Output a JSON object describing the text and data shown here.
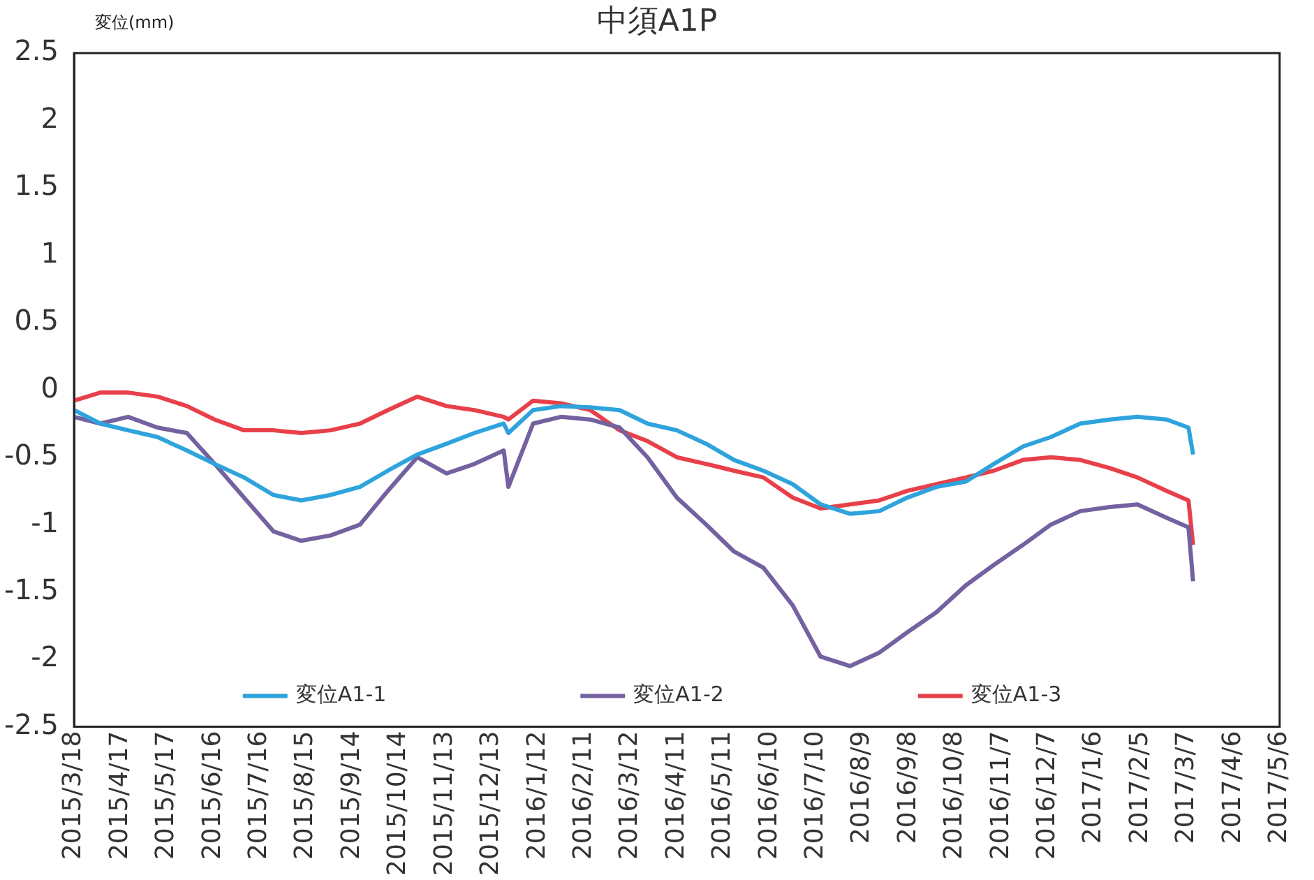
{
  "chart_data": {
    "type": "line",
    "title": "中須A1P",
    "ylabel": "変位(mm)",
    "x": [
      "2015-03-18",
      "2015-04-04",
      "2015-04-22",
      "2015-05-11",
      "2015-05-30",
      "2015-06-17",
      "2015-07-06",
      "2015-07-25",
      "2015-08-12",
      "2015-08-31",
      "2015-09-19",
      "2015-10-07",
      "2015-10-26",
      "2015-11-14",
      "2015-12-02",
      "2015-12-21",
      "2015-12-24",
      "2016-01-09",
      "2016-01-27",
      "2016-02-15",
      "2016-03-05",
      "2016-03-23",
      "2016-04-11",
      "2016-04-30",
      "2016-05-18",
      "2016-06-06",
      "2016-06-25",
      "2016-07-13",
      "2016-08-01",
      "2016-08-20",
      "2016-09-07",
      "2016-09-26",
      "2016-10-15",
      "2016-11-02",
      "2016-11-21",
      "2016-12-09",
      "2016-12-28",
      "2017-01-16",
      "2017-02-03",
      "2017-02-22",
      "2017-03-08",
      "2017-03-11"
    ],
    "series": [
      {
        "name": "変位A1-1",
        "color": "#2ea3dc",
        "values": [
          -0.15,
          -0.25,
          -0.3,
          -0.35,
          -0.45,
          -0.55,
          -0.65,
          -0.78,
          -0.82,
          -0.78,
          -0.72,
          -0.6,
          -0.48,
          -0.4,
          -0.32,
          -0.25,
          -0.32,
          -0.15,
          -0.12,
          -0.13,
          -0.15,
          -0.25,
          -0.3,
          -0.4,
          -0.52,
          -0.6,
          -0.7,
          -0.85,
          -0.92,
          -0.9,
          -0.8,
          -0.72,
          -0.68,
          -0.55,
          -0.42,
          -0.35,
          -0.25,
          -0.22,
          -0.2,
          -0.22,
          -0.28,
          -0.48
        ]
      },
      {
        "name": "変位A1-2",
        "color": "#7361a0",
        "values": [
          -0.2,
          -0.25,
          -0.2,
          -0.28,
          -0.32,
          -0.55,
          -0.8,
          -1.05,
          -1.12,
          -1.08,
          -1.0,
          -0.75,
          -0.5,
          -0.62,
          -0.55,
          -0.45,
          -0.72,
          -0.25,
          -0.2,
          -0.22,
          -0.28,
          -0.5,
          -0.8,
          -1.0,
          -1.2,
          -1.32,
          -1.6,
          -1.98,
          -2.05,
          -1.95,
          -1.8,
          -1.65,
          -1.45,
          -1.3,
          -1.15,
          -1.0,
          -0.9,
          -0.87,
          -0.85,
          -0.95,
          -1.02,
          -1.42
        ]
      },
      {
        "name": "変位A1-3",
        "color": "#e8404a",
        "values": [
          -0.08,
          -0.02,
          -0.02,
          -0.05,
          -0.12,
          -0.22,
          -0.3,
          -0.3,
          -0.32,
          -0.3,
          -0.25,
          -0.15,
          -0.05,
          -0.12,
          -0.15,
          -0.2,
          -0.22,
          -0.08,
          -0.1,
          -0.15,
          -0.3,
          -0.38,
          -0.5,
          -0.55,
          -0.6,
          -0.65,
          -0.8,
          -0.88,
          -0.85,
          -0.82,
          -0.75,
          -0.7,
          -0.65,
          -0.6,
          -0.52,
          -0.5,
          -0.52,
          -0.58,
          -0.65,
          -0.75,
          -0.82,
          -1.15
        ]
      }
    ],
    "xlim": [
      "2015-03-18",
      "2017-05-06"
    ],
    "xticks": [
      {
        "value": "2015-03-18",
        "label": "2015/3/18"
      },
      {
        "value": "2015-04-17",
        "label": "2015/4/17"
      },
      {
        "value": "2015-05-17",
        "label": "2015/5/17"
      },
      {
        "value": "2015-06-16",
        "label": "2015/6/16"
      },
      {
        "value": "2015-07-16",
        "label": "2015/7/16"
      },
      {
        "value": "2015-08-15",
        "label": "2015/8/15"
      },
      {
        "value": "2015-09-14",
        "label": "2015/9/14"
      },
      {
        "value": "2015-10-14",
        "label": "2015/10/14"
      },
      {
        "value": "2015-11-13",
        "label": "2015/11/13"
      },
      {
        "value": "2015-12-13",
        "label": "2015/12/13"
      },
      {
        "value": "2016-01-12",
        "label": "2016/1/12"
      },
      {
        "value": "2016-02-11",
        "label": "2016/2/11"
      },
      {
        "value": "2016-03-12",
        "label": "2016/3/12"
      },
      {
        "value": "2016-04-11",
        "label": "2016/4/11"
      },
      {
        "value": "2016-05-11",
        "label": "2016/5/11"
      },
      {
        "value": "2016-06-10",
        "label": "2016/6/10"
      },
      {
        "value": "2016-07-10",
        "label": "2016/7/10"
      },
      {
        "value": "2016-08-09",
        "label": "2016/8/9"
      },
      {
        "value": "2016-09-08",
        "label": "2016/9/8"
      },
      {
        "value": "2016-10-08",
        "label": "2016/10/8"
      },
      {
        "value": "2016-11-07",
        "label": "2016/11/7"
      },
      {
        "value": "2016-12-07",
        "label": "2016/12/7"
      },
      {
        "value": "2017-01-06",
        "label": "2017/1/6"
      },
      {
        "value": "2017-02-05",
        "label": "2017/2/5"
      },
      {
        "value": "2017-03-07",
        "label": "2017/3/7"
      },
      {
        "value": "2017-04-06",
        "label": "2017/4/6"
      },
      {
        "value": "2017-05-06",
        "label": "2017/5/6"
      }
    ],
    "ylim": [
      -2.5,
      2.5
    ],
    "yticks": [
      -2.5,
      -2,
      -1.5,
      -1,
      -0.5,
      0,
      0.5,
      1,
      1.5,
      2,
      2.5
    ],
    "grid": false,
    "legend": "bottom",
    "marker": "none",
    "line_style": "solid"
  }
}
